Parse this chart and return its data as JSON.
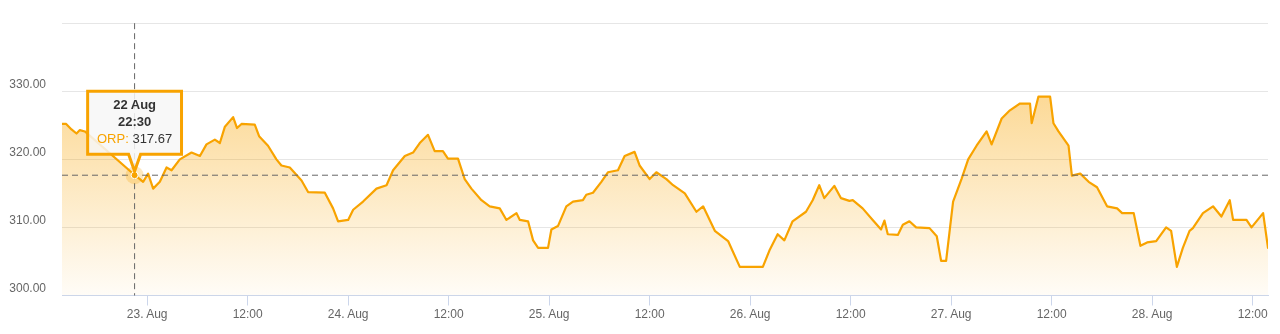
{
  "chart_data": {
    "type": "area",
    "xlim": [
      "--08-22T13:50",
      "--08-28T13:50"
    ],
    "xticks": [
      {
        "value": "--08-23T00:00",
        "label": "23. Aug"
      },
      {
        "value": "--08-23T12:00",
        "label": "12:00"
      },
      {
        "value": "--08-24T00:00",
        "label": "24. Aug"
      },
      {
        "value": "--08-24T12:00",
        "label": "12:00"
      },
      {
        "value": "--08-25T00:00",
        "label": "25. Aug"
      },
      {
        "value": "--08-25T12:00",
        "label": "12:00"
      },
      {
        "value": "--08-26T00:00",
        "label": "26. Aug"
      },
      {
        "value": "--08-26T12:00",
        "label": "12:00"
      },
      {
        "value": "--08-27T00:00",
        "label": "27. Aug"
      },
      {
        "value": "--08-27T12:00",
        "label": "12:00"
      },
      {
        "value": "--08-28T00:00",
        "label": "28. Aug"
      },
      {
        "value": "--08-28T12:00",
        "label": "12:00"
      }
    ],
    "ylim": [
      300,
      340
    ],
    "yticks": [
      {
        "value": 300,
        "label": "300.00"
      },
      {
        "value": 310,
        "label": "310.00"
      },
      {
        "value": 320,
        "label": "320.00"
      },
      {
        "value": 330,
        "label": "330.00"
      },
      {
        "value": 340,
        "label": null
      }
    ],
    "grid": "y",
    "legend": false,
    "marker": "none",
    "series": [
      {
        "color": "#f8a300",
        "x": [
          "--08-22T13:50",
          "--08-22T14:20",
          "--08-22T14:58",
          "--08-22T15:34",
          "--08-22T15:58",
          "--08-22T16:34",
          "--08-22T19:20",
          "--08-22T20:30",
          "--08-22T21:30",
          "--08-22T22:30",
          "--08-22T23:08",
          "--08-22T23:31",
          "--08-23T00:07",
          "--08-23T00:43",
          "--08-23T01:31",
          "--08-23T02:19",
          "--08-23T02:55",
          "--08-23T03:54",
          "--08-23T05:18",
          "--08-23T06:18",
          "--08-23T07:05",
          "--08-23T08:05",
          "--08-23T08:41",
          "--08-23T09:17",
          "--08-23T10:16",
          "--08-23T10:44",
          "--08-23T11:16",
          "--08-23T12:51",
          "--08-23T13:22",
          "--08-23T14:26",
          "--08-23T15:26",
          "--08-23T16:02",
          "--08-23T17:02",
          "--08-23T18:26",
          "--08-23T19:13",
          "--08-23T21:13",
          "--08-23T22:12",
          "--08-23T22:48",
          "--08-24T00:00",
          "--08-24T00:36",
          "--08-24T01:47",
          "--08-24T03:23",
          "--08-24T04:35",
          "--08-24T05:22",
          "--08-24T06:46",
          "--08-24T07:45",
          "--08-24T08:33",
          "--08-24T09:32",
          "--08-24T10:20",
          "--08-24T11:19",
          "--08-24T11:55",
          "--08-24T13:07",
          "--08-24T13:55",
          "--08-24T14:43",
          "--08-24T15:55",
          "--08-24T16:54",
          "--08-24T18:06",
          "--08-24T18:54",
          "--08-24T20:06",
          "--08-24T20:30",
          "--08-24T21:29",
          "--08-24T22:05",
          "--08-24T22:41",
          "--08-24T23:52",
          "--08-25T00:16",
          "--08-25T01:03",
          "--08-25T02:03",
          "--08-25T02:51",
          "--08-25T04:02",
          "--08-25T04:26",
          "--08-25T05:14",
          "--08-25T06:14",
          "--08-25T07:01",
          "--08-25T08:13",
          "--08-25T09:01",
          "--08-25T10:12",
          "--08-25T10:48",
          "--08-25T12:00",
          "--08-25T12:48",
          "--08-25T14:00",
          "--08-25T14:48",
          "--08-25T16:12",
          "--08-25T17:35",
          "--08-25T18:23",
          "--08-25T19:47",
          "--08-25T21:22",
          "--08-25T22:46",
          "--08-26T01:31",
          "--08-26T02:18",
          "--08-26T03:17",
          "--08-26T04:05",
          "--08-26T05:04",
          "--08-26T06:40",
          "--08-26T07:28",
          "--08-26T08:15",
          "--08-26T08:51",
          "--08-26T10:03",
          "--08-26T10:51",
          "--08-26T11:51",
          "--08-26T12:15",
          "--08-26T13:26",
          "--08-26T14:38",
          "--08-26T15:38",
          "--08-26T16:02",
          "--08-26T16:26",
          "--08-26T17:38",
          "--08-26T18:14",
          "--08-26T19:01",
          "--08-26T19:49",
          "--08-26T21:25",
          "--08-26T22:17",
          "--08-26T22:48",
          "--08-26T23:24",
          "--08-27T00:14",
          "--08-27T01:14",
          "--08-27T02:02",
          "--08-27T03:02",
          "--08-27T04:14",
          "--08-27T04:50",
          "--08-27T06:02",
          "--08-27T07:01",
          "--08-27T08:13",
          "--08-27T09:25",
          "--08-27T09:37",
          "--08-27T10:25",
          "--08-27T11:49",
          "--08-27T12:13",
          "--08-27T12:49",
          "--08-27T14:01",
          "--08-27T14:25",
          "--08-27T15:25",
          "--08-27T16:25",
          "--08-27T17:25",
          "--08-27T18:37",
          "--08-27T19:49",
          "--08-27T20:25",
          "--08-27T21:48",
          "--08-27T22:36",
          "--08-27T23:24",
          "--08-28T00:29",
          "--08-28T01:40",
          "--08-28T02:16",
          "--08-28T02:57",
          "--08-28T03:40",
          "--08-28T04:28",
          "--08-28T04:52",
          "--08-28T06:04",
          "--08-28T07:16",
          "--08-28T08:16",
          "--08-28T09:16",
          "--08-28T09:40",
          "--08-28T11:16",
          "--08-28T11:52",
          "--08-28T13:15",
          "--08-28T13:50"
        ],
        "values": [
          325.2,
          325.2,
          324.4,
          323.8,
          324.3,
          324.1,
          null,
          null,
          null,
          317.7,
          317.1,
          316.7,
          317.9,
          315.7,
          316.7,
          318.8,
          318.4,
          320.0,
          321.0,
          320.5,
          322.2,
          322.9,
          322.4,
          324.8,
          326.2,
          324.6,
          325.2,
          325.1,
          323.4,
          322.0,
          320.0,
          319.1,
          318.8,
          316.9,
          315.2,
          315.1,
          312.8,
          310.9,
          311.1,
          312.6,
          313.8,
          315.7,
          316.2,
          318.4,
          320.5,
          321.0,
          322.4,
          323.6,
          321.2,
          321.2,
          320.1,
          320.1,
          317.1,
          315.7,
          314.0,
          313.1,
          312.8,
          311.1,
          312.1,
          311.1,
          310.9,
          308.1,
          307.0,
          307.0,
          309.7,
          310.2,
          313.1,
          313.8,
          314.0,
          314.8,
          315.1,
          316.7,
          318.1,
          318.4,
          320.5,
          321.1,
          319.1,
          317.1,
          318.1,
          317.1,
          316.2,
          315.0,
          312.3,
          313.1,
          309.5,
          308.0,
          304.2,
          304.2,
          306.6,
          309.0,
          308.1,
          310.9,
          312.3,
          314.0,
          316.2,
          314.3,
          316.1,
          314.3,
          313.9,
          314.0,
          312.8,
          311.1,
          309.7,
          311.0,
          309.0,
          308.9,
          310.4,
          310.9,
          310.0,
          309.9,
          308.7,
          305.1,
          305.1,
          313.8,
          317.1,
          320.0,
          322.0,
          324.1,
          322.2,
          326.0,
          327.2,
          328.2,
          328.2,
          325.3,
          329.2,
          329.2,
          325.3,
          324.1,
          322.0,
          317.6,
          317.9,
          316.7,
          315.9,
          313.1,
          312.8,
          312.1,
          312.1,
          307.3,
          307.8,
          308.0,
          310.0,
          309.5,
          304.2,
          307.0,
          309.5,
          309.9,
          312.1,
          313.1,
          311.6,
          314.0,
          311.1,
          311.1,
          310.0,
          312.1,
          307.0
        ]
      }
    ],
    "ref_lines": [
      {
        "axis": "x",
        "value": "--08-22T22:30",
        "color": "#666666",
        "line_style": "dashed"
      },
      {
        "axis": "y",
        "value": 317.67,
        "color": "#666666",
        "line_style": "dashed"
      }
    ],
    "annotations": [
      "22 Aug\n22:30\nORP: 317.67"
    ]
  }
}
